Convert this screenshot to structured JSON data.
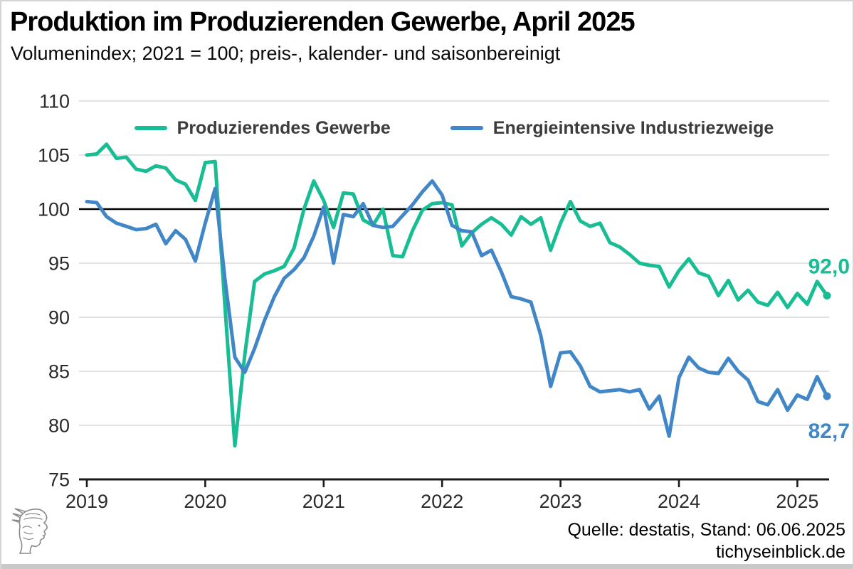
{
  "header": {
    "title": "Produktion im Produzierenden Gewerbe, April 2025",
    "subtitle": "Volumenindex; 2021 = 100; preis-, kalender- und saisonbereinigt"
  },
  "legend": {
    "items": [
      {
        "label": "Produzierendes Gewerbe",
        "color": "#19bd94"
      },
      {
        "label": "Energieintensive Industriezweige",
        "color": "#4187c7"
      }
    ]
  },
  "footer": {
    "source_line": "Quelle: destatis, Stand: 06.06.2025",
    "website": "tichyseinblick.de",
    "logo_icon": "hermes-head-engraving-icon"
  },
  "colors": {
    "green_series": "#19bd94",
    "blue_series": "#4187c7",
    "gridline": "#e2e2e2",
    "baseline": "#000000",
    "axis": "#1a1a1a",
    "tick_text": "#2b2b2b"
  },
  "chart_data": {
    "type": "line",
    "start_month": "2019-01",
    "end_month": "2025-04",
    "points_per_series": 76,
    "grid": true,
    "legend_position": "top-center",
    "ylim": [
      75,
      110
    ],
    "y_ticks": [
      75,
      80,
      85,
      90,
      95,
      100,
      105,
      110
    ],
    "baseline_value": 100,
    "x_tick_labels": [
      "2019",
      "2020",
      "2021",
      "2022",
      "2023",
      "2024",
      "2025"
    ],
    "series": [
      {
        "name": "Produzierendes Gewerbe",
        "color": "#19bd94",
        "end_label": "92,0",
        "end_value": 92.0,
        "values": [
          105.0,
          105.1,
          106.0,
          104.7,
          104.8,
          103.7,
          103.5,
          104.0,
          103.8,
          102.7,
          102.3,
          100.8,
          104.3,
          104.4,
          91.0,
          78.1,
          86.5,
          93.3,
          94.0,
          94.3,
          94.7,
          96.4,
          100.0,
          102.6,
          100.8,
          98.3,
          101.5,
          101.4,
          99.0,
          98.5,
          100.0,
          95.7,
          95.6,
          98.0,
          99.9,
          100.5,
          100.6,
          100.4,
          96.6,
          97.8,
          98.6,
          99.2,
          98.6,
          97.6,
          99.3,
          98.6,
          99.2,
          96.2,
          98.7,
          100.7,
          98.9,
          98.4,
          98.7,
          96.9,
          96.5,
          95.8,
          95.0,
          94.8,
          94.7,
          92.8,
          94.3,
          95.4,
          94.1,
          93.8,
          92.0,
          93.4,
          91.6,
          92.5,
          91.4,
          91.1,
          92.3,
          90.9,
          92.2,
          91.2,
          93.3,
          92.0
        ]
      },
      {
        "name": "Energieintensive Industriezweige",
        "color": "#4187c7",
        "end_label": "82,7",
        "end_value": 82.7,
        "values": [
          100.7,
          100.6,
          99.3,
          98.7,
          98.4,
          98.1,
          98.2,
          98.6,
          96.8,
          98.0,
          97.2,
          95.2,
          98.7,
          101.9,
          93.5,
          86.3,
          84.9,
          87.1,
          89.7,
          91.9,
          93.6,
          94.4,
          95.5,
          97.5,
          100.2,
          95.0,
          99.5,
          99.3,
          100.5,
          98.5,
          98.3,
          98.4,
          99.4,
          100.4,
          101.6,
          102.6,
          101.3,
          98.5,
          98.0,
          97.9,
          95.7,
          96.2,
          94.2,
          91.9,
          91.7,
          91.4,
          88.3,
          83.6,
          86.7,
          86.8,
          85.5,
          83.6,
          83.1,
          83.2,
          83.3,
          83.1,
          83.3,
          81.5,
          82.7,
          79.0,
          84.4,
          86.3,
          85.3,
          84.9,
          84.8,
          86.2,
          85.0,
          84.2,
          82.2,
          81.9,
          83.3,
          81.4,
          82.8,
          82.4,
          84.5,
          82.7
        ]
      }
    ]
  }
}
